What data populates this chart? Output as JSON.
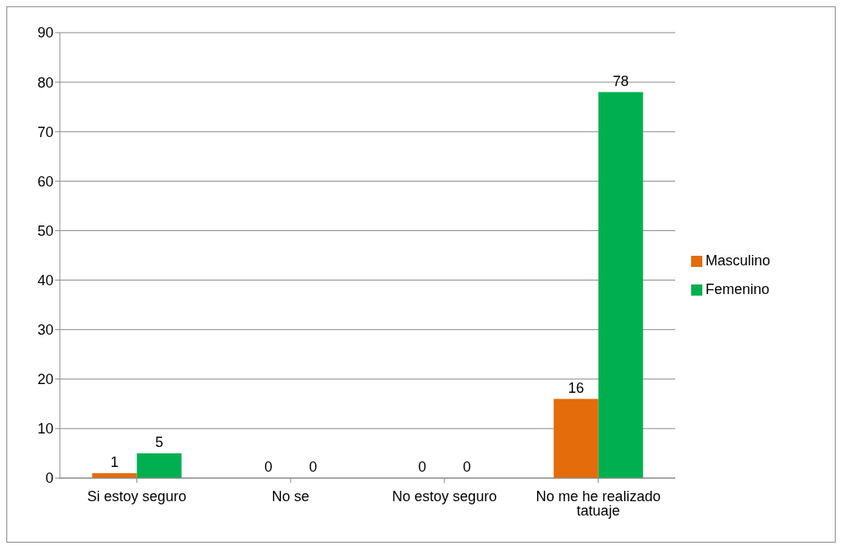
{
  "chart_data": {
    "type": "bar",
    "categories": [
      "Si estoy seguro",
      "No se",
      "No estoy seguro",
      "No me he realizado tatuaje"
    ],
    "series": [
      {
        "name": "Masculino",
        "color": "#e46c0a",
        "values": [
          1,
          0,
          0,
          16
        ]
      },
      {
        "name": "Femenino",
        "color": "#00b050",
        "values": [
          5,
          0,
          0,
          78
        ]
      }
    ],
    "ylim": [
      0,
      90
    ],
    "yticks": [
      0,
      10,
      20,
      30,
      40,
      50,
      60,
      70,
      80,
      90
    ],
    "grid": "y",
    "legend": "right",
    "data_labels": true
  }
}
